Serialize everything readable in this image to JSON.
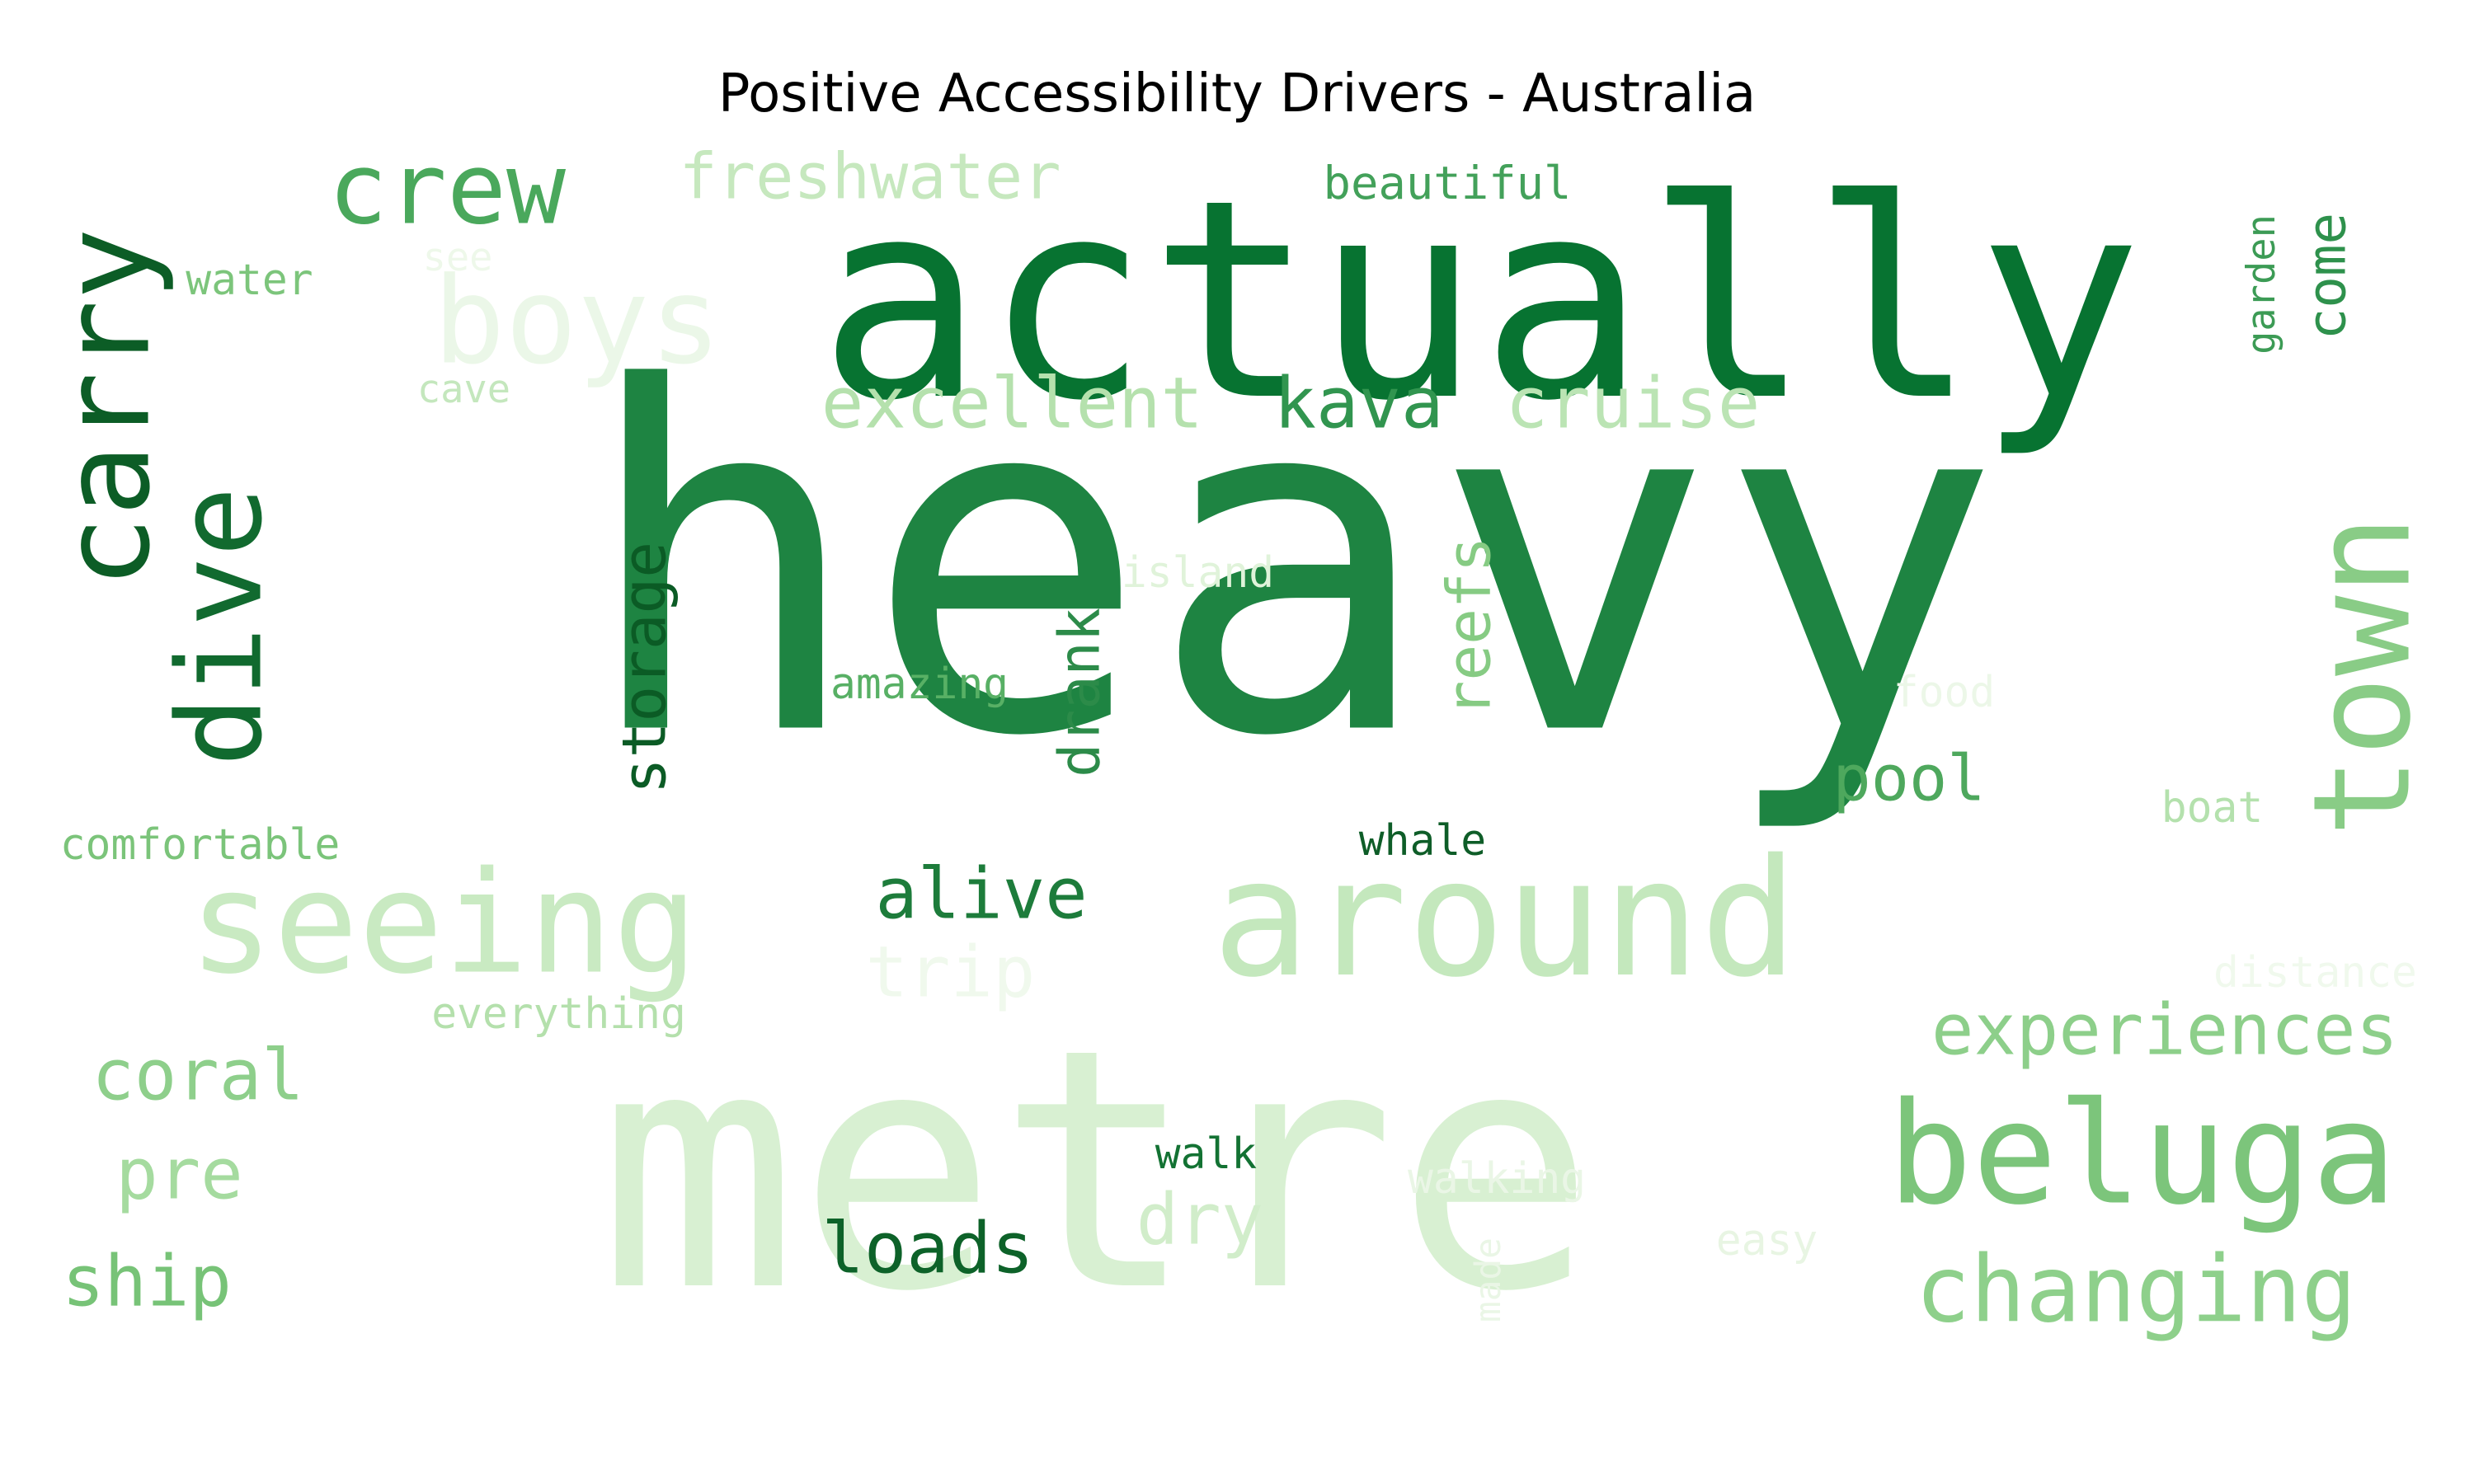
{
  "title": "Positive Accessibility Drivers - Australia",
  "colors": {
    "background": "#ffffff",
    "palette": "Greens"
  },
  "words": [
    {
      "text": "heavy",
      "shade": "#1e8442",
      "vertical": false
    },
    {
      "text": "metre",
      "shade": "#d8f0d2",
      "vertical": false
    },
    {
      "text": "actually",
      "shade": "#077331",
      "vertical": false
    },
    {
      "text": "around",
      "shade": "#c4e8bd",
      "vertical": false
    },
    {
      "text": "seeing",
      "shade": "#c9eac2",
      "vertical": false
    },
    {
      "text": "beluga",
      "shade": "#7cc57b",
      "vertical": false
    },
    {
      "text": "town",
      "shade": "#89cc86",
      "vertical": true
    },
    {
      "text": "carry",
      "shade": "#0c5d26",
      "vertical": true
    },
    {
      "text": "crew",
      "shade": "#4aa85c",
      "vertical": false
    },
    {
      "text": "boys",
      "shade": "#ebf7e8",
      "vertical": false
    },
    {
      "text": "dive",
      "shade": "#116a2f",
      "vertical": true
    },
    {
      "text": "changing",
      "shade": "#8ed08b",
      "vertical": false
    },
    {
      "text": "experiences",
      "shade": "#8dcf8a",
      "vertical": false
    },
    {
      "text": "excellent",
      "shade": "#b5e1ad",
      "vertical": false
    },
    {
      "text": "cruise",
      "shade": "#bbe4b4",
      "vertical": false
    },
    {
      "text": "kava",
      "shade": "#31954f",
      "vertical": false
    },
    {
      "text": "freshwater",
      "shade": "#c6e8be",
      "vertical": false
    },
    {
      "text": "alive",
      "shade": "#1d7c3b",
      "vertical": false
    },
    {
      "text": "storage",
      "shade": "#0b5b25",
      "vertical": true
    },
    {
      "text": "drank",
      "shade": "#2c8b49",
      "vertical": true
    },
    {
      "text": "reefs",
      "shade": "#86cb83",
      "vertical": true
    },
    {
      "text": "coral",
      "shade": "#8ecf8b",
      "vertical": false
    },
    {
      "text": "pre",
      "shade": "#a5db9f",
      "vertical": false
    },
    {
      "text": "ship",
      "shade": "#77c377",
      "vertical": false
    },
    {
      "text": "loads",
      "shade": "#0d6229",
      "vertical": false
    },
    {
      "text": "dry",
      "shade": "#d1edca",
      "vertical": false
    },
    {
      "text": "pool",
      "shade": "#4ea85d",
      "vertical": false
    },
    {
      "text": "trip",
      "shade": "#f0f9ed",
      "vertical": false
    },
    {
      "text": "come",
      "shade": "#2e914c",
      "vertical": true
    },
    {
      "text": "garden",
      "shade": "#3c9b55",
      "vertical": true
    },
    {
      "text": "beautiful",
      "shade": "#43a15a",
      "vertical": false
    },
    {
      "text": "water",
      "shade": "#7cc57b",
      "vertical": false
    },
    {
      "text": "see",
      "shade": "#eef8ea",
      "vertical": false
    },
    {
      "text": "cave",
      "shade": "#c4e7bd",
      "vertical": false
    },
    {
      "text": "island",
      "shade": "#e0f3da",
      "vertical": false
    },
    {
      "text": "amazing",
      "shade": "#58b065",
      "vertical": false
    },
    {
      "text": "food",
      "shade": "#ecf7e8",
      "vertical": false
    },
    {
      "text": "boat",
      "shade": "#b4e1ad",
      "vertical": false
    },
    {
      "text": "whale",
      "shade": "#0e5d28",
      "vertical": false
    },
    {
      "text": "comfortable",
      "shade": "#7bc47a",
      "vertical": false
    },
    {
      "text": "everything",
      "shade": "#b4e0ac",
      "vertical": false
    },
    {
      "text": "distance",
      "shade": "#f0f9ed",
      "vertical": false
    },
    {
      "text": "walk",
      "shade": "#137233",
      "vertical": false
    },
    {
      "text": "walking",
      "shade": "#eaf6e6",
      "vertical": false
    },
    {
      "text": "easy",
      "shade": "#e8f5e3",
      "vertical": false
    },
    {
      "text": "made",
      "shade": "#eaf6e6",
      "vertical": true
    }
  ]
}
